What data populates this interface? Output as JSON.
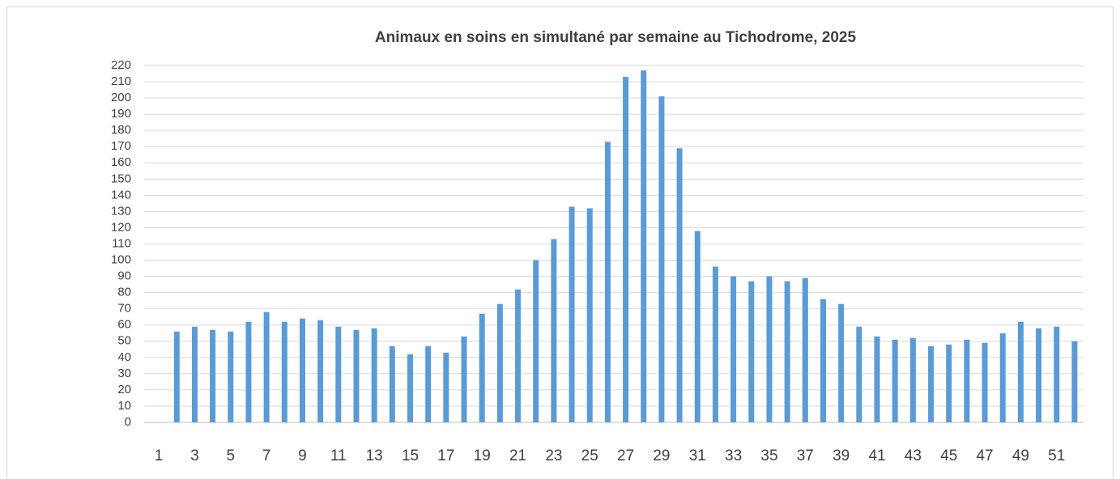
{
  "chart_data": {
    "type": "bar",
    "title": "Animaux en soins en simultané par semaine au Tichodrome, 2025",
    "categories": [
      "1",
      null,
      "3",
      null,
      "5",
      null,
      "7",
      null,
      "9",
      null,
      "11",
      null,
      "13",
      null,
      "15",
      null,
      "17",
      null,
      "19",
      null,
      "21",
      null,
      "23",
      null,
      "25",
      null,
      "27",
      null,
      "29",
      null,
      "31",
      null,
      "33",
      null,
      "35",
      null,
      "37",
      null,
      "39",
      null,
      "41",
      null,
      "43",
      null,
      "45",
      null,
      "47",
      null,
      "49",
      null,
      "51",
      null
    ],
    "values": [
      null,
      56,
      59,
      57,
      56,
      62,
      68,
      62,
      64,
      63,
      59,
      57,
      58,
      47,
      42,
      47,
      43,
      53,
      67,
      73,
      82,
      100,
      113,
      133,
      132,
      173,
      213,
      217,
      201,
      169,
      118,
      96,
      90,
      87,
      90,
      87,
      89,
      76,
      73,
      59,
      53,
      51,
      52,
      47,
      48,
      51,
      49,
      55,
      62,
      58,
      59,
      50
    ],
    "color": "#5b9bd5",
    "ylim": [
      0,
      220
    ],
    "yticks": [
      0,
      10,
      20,
      30,
      40,
      50,
      60,
      70,
      80,
      90,
      100,
      110,
      120,
      130,
      140,
      150,
      160,
      170,
      180,
      190,
      200,
      210,
      220
    ],
    "grid": true
  }
}
